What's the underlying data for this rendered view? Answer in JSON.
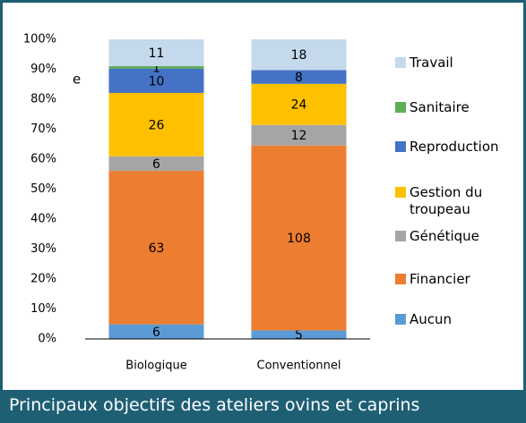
{
  "chart_data": {
    "type": "bar",
    "stacking": "percent",
    "title": "Principaux objectifs des ateliers ovins et caprins",
    "annotation": "e",
    "categories": [
      "Biologique",
      "Conventionnel"
    ],
    "series": [
      {
        "name": "Aucun",
        "color": "#5b9bd5",
        "values": [
          6,
          5
        ]
      },
      {
        "name": "Financier",
        "color": "#ed7d31",
        "values": [
          63,
          108
        ]
      },
      {
        "name": "Génétique",
        "color": "#a5a5a5",
        "values": [
          6,
          12
        ]
      },
      {
        "name": "Gestion du troupeau",
        "color": "#ffc000",
        "values": [
          26,
          24
        ]
      },
      {
        "name": "Reproduction",
        "color": "#4472c4",
        "values": [
          10,
          8
        ]
      },
      {
        "name": "Sanitaire",
        "color": "#5fad56",
        "values": [
          1,
          null
        ]
      },
      {
        "name": "Travail",
        "color": "#c5d9ec",
        "values": [
          11,
          18
        ]
      }
    ],
    "ylim": [
      0,
      100
    ],
    "yticks": [
      {
        "value": 0,
        "label": "0%"
      },
      {
        "value": 10,
        "label": "10%"
      },
      {
        "value": 20,
        "label": "20%"
      },
      {
        "value": 30,
        "label": "30%"
      },
      {
        "value": 40,
        "label": "40%"
      },
      {
        "value": 50,
        "label": "50%"
      },
      {
        "value": 60,
        "label": "60%"
      },
      {
        "value": 70,
        "label": "70%"
      },
      {
        "value": 80,
        "label": "80%"
      },
      {
        "value": 90,
        "label": "90%"
      },
      {
        "value": 100,
        "label": "100%"
      }
    ],
    "grid": false
  }
}
